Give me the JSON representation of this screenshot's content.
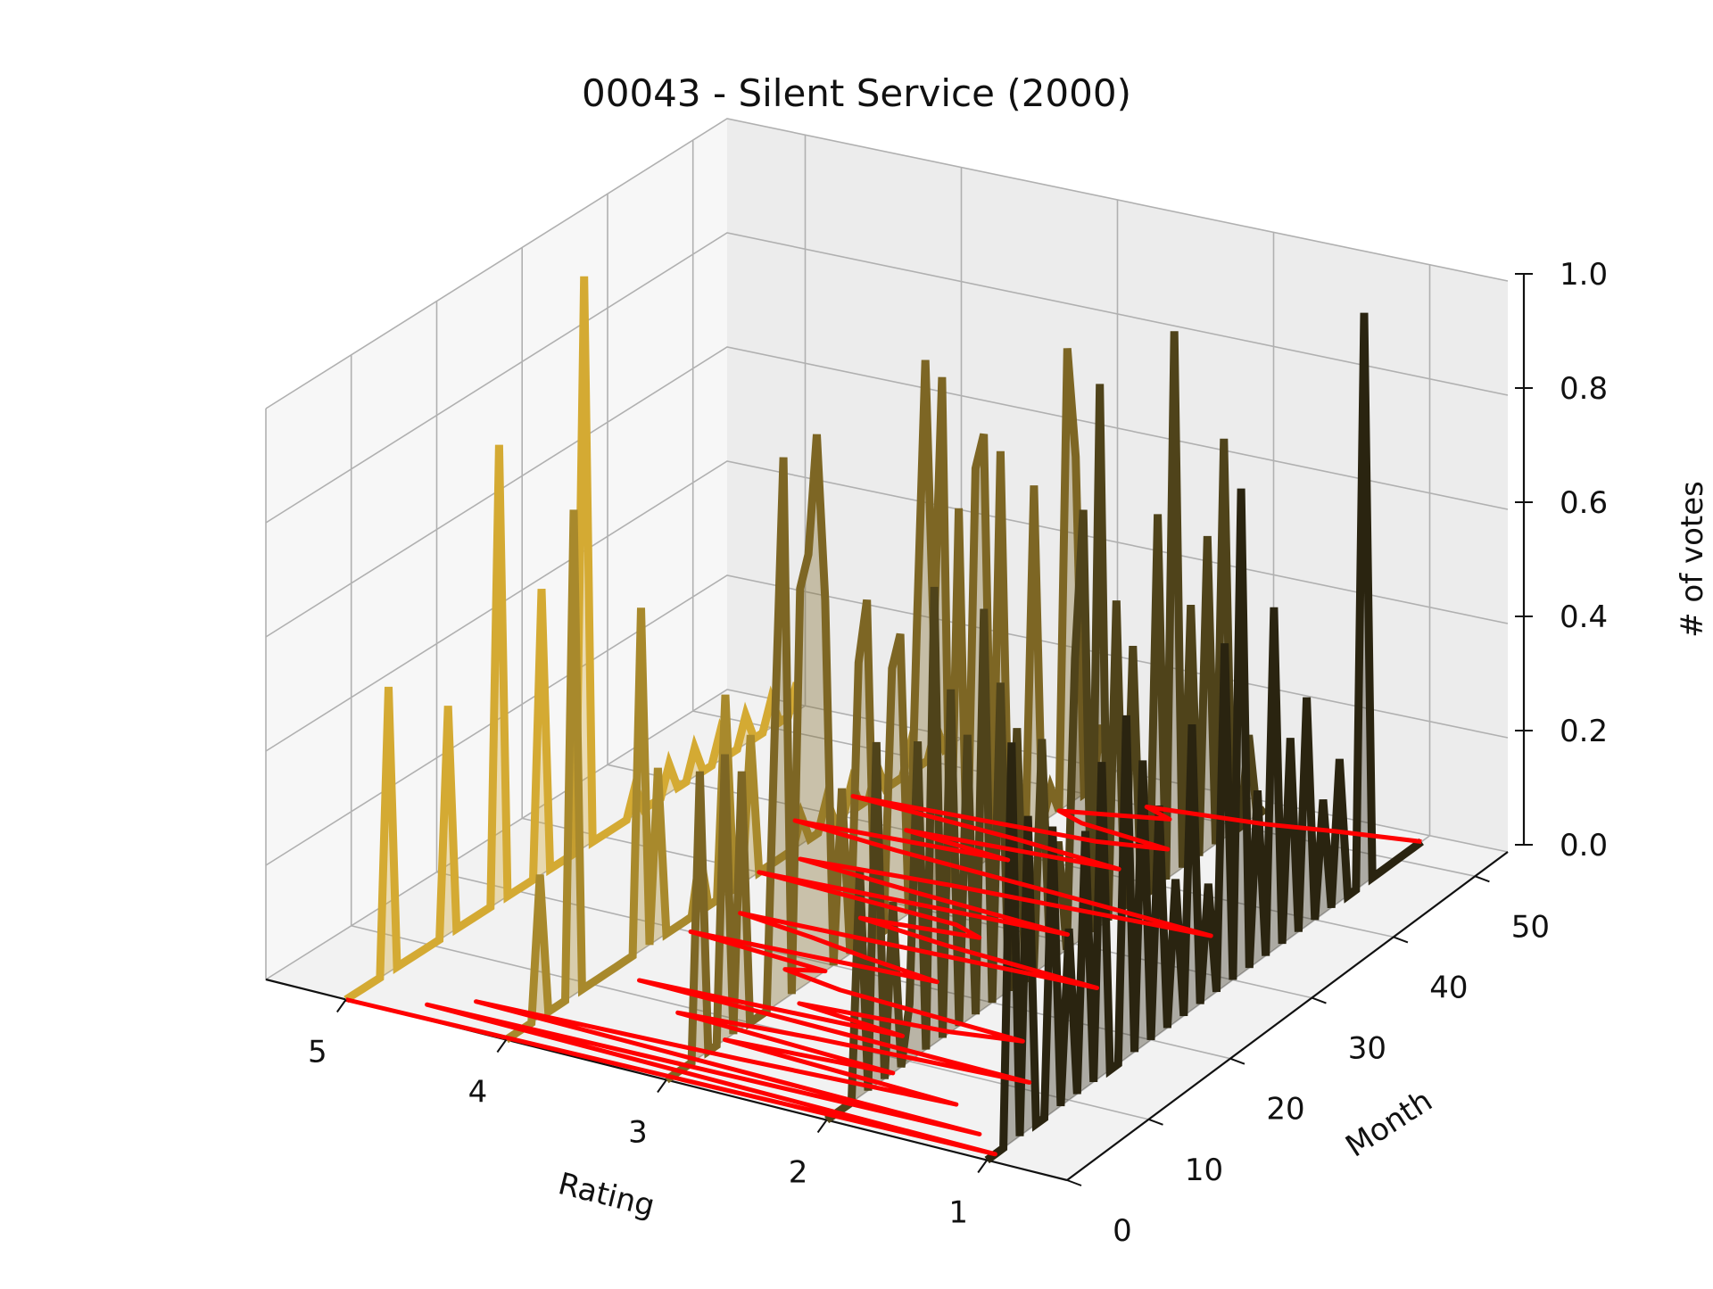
{
  "chart_data": {
    "type": "line",
    "projection": "3d",
    "title": "00043 - Silent Service (2000)",
    "xlabel": "Rating",
    "ylabel": "Month",
    "zlabel": "# of votes",
    "x_ticks": [
      "5",
      "4",
      "3",
      "2",
      "1"
    ],
    "y_ticks": [
      "0",
      "10",
      "20",
      "30",
      "40",
      "50"
    ],
    "z_ticks": [
      "0.0",
      "0.2",
      "0.4",
      "0.6",
      "0.8",
      "1.0"
    ],
    "xlim": [
      0.5,
      5.5
    ],
    "ylim": [
      0,
      54
    ],
    "zlim": [
      0,
      1
    ],
    "grid": true,
    "colors": {
      "rating_5": "#d4aa33",
      "rating_4": "#a8892c",
      "rating_3": "#7d6624",
      "rating_2": "#4f431a",
      "rating_1": "#2a2410",
      "mean_line": "#ff0000",
      "pane": "#ebebeb",
      "grid": "#b0b0b0"
    },
    "series": [
      {
        "rating": 5,
        "values": [
          0,
          0,
          0,
          0,
          0,
          0.5,
          0,
          0,
          0,
          0,
          0,
          0,
          0.4,
          0,
          0,
          0,
          0,
          0,
          0.8,
          0,
          0,
          0,
          0,
          0.5,
          0,
          0,
          0,
          0,
          1.0,
          0,
          0,
          0,
          0,
          0,
          0.05,
          0,
          0,
          0,
          0.05,
          0,
          0,
          0.05,
          0,
          0,
          0.05,
          0,
          0,
          0.05,
          0,
          0,
          0.05,
          0,
          0,
          0.05
        ]
      },
      {
        "rating": 4,
        "values": [
          0,
          0,
          0,
          0,
          0.25,
          0,
          0,
          0,
          0.85,
          0,
          0,
          0,
          0,
          0,
          0,
          0,
          0.6,
          0,
          0.3,
          0,
          0,
          0,
          0,
          0.1,
          0,
          0,
          0.35,
          0,
          0,
          0.25,
          0,
          0,
          0,
          0,
          0,
          0.05,
          0,
          0,
          0.05,
          0,
          0,
          0.05,
          0,
          0,
          0.05,
          0,
          0,
          0,
          0.05,
          0,
          0,
          0.05,
          0,
          0
        ]
      },
      {
        "rating": 3,
        "values": [
          0,
          0,
          0,
          0,
          0.5,
          0,
          0,
          0.5,
          0,
          0.45,
          0,
          0,
          0,
          0.5,
          0.95,
          0,
          0.7,
          0.75,
          0.95,
          0.65,
          0,
          0.3,
          0,
          0.5,
          0.6,
          0,
          0,
          0.45,
          0.5,
          0,
          0.5,
          0.95,
          0.45,
          0.9,
          0,
          0.65,
          0,
          0.7,
          0.75,
          0,
          0.7,
          0,
          0,
          0,
          0.6,
          0,
          0.05,
          0,
          0.8,
          0.6,
          0,
          0,
          0.1,
          0
        ]
      },
      {
        "rating": 2,
        "values": [
          0,
          0,
          0,
          0,
          0.4,
          0,
          0.6,
          0,
          0.3,
          0,
          0.1,
          0.55,
          0,
          0.8,
          0,
          0.6,
          0,
          0.5,
          0,
          0.7,
          0,
          0.55,
          0,
          0.45,
          0,
          0,
          0.4,
          0,
          0.2,
          0,
          0.5,
          0.75,
          0,
          0.95,
          0,
          0.55,
          0,
          0.45,
          0,
          0,
          0.65,
          0,
          0.95,
          0,
          0.45,
          0,
          0.55,
          0,
          0.7,
          0,
          0,
          0.15,
          0,
          0
        ]
      },
      {
        "rating": 1,
        "values": [
          0,
          0,
          0,
          0.7,
          0,
          0.55,
          0,
          0,
          0.5,
          0,
          0.3,
          0,
          0.45,
          0,
          0.55,
          0,
          0,
          0.6,
          0,
          0.5,
          0,
          0.4,
          0,
          0.25,
          0,
          0.5,
          0,
          0.2,
          0,
          0.6,
          0,
          0.85,
          0,
          0.3,
          0,
          0.6,
          0,
          0.35,
          0,
          0.4,
          0,
          0.2,
          0,
          0.25,
          0,
          0,
          1.0,
          0,
          0,
          0,
          0,
          0,
          0,
          0
        ]
      }
    ],
    "mean_rating": [
      5.0,
      1.0,
      4.6,
      1.2,
      4.4,
      2.8,
      1.5,
      3.0,
      2.0,
      3.4,
      2.6,
      1.3,
      3.8,
      2.2,
      2.9,
      2.0,
      1.6,
      2.8,
      3.2,
      3.0,
      3.9,
      2.4,
      2.9,
      3.3,
      3.8,
      1.6,
      2.6,
      3.2,
      2.5,
      2.7,
      4.0,
      2.1,
      3.1,
      3.9,
      3.0,
      1.4,
      2.4,
      3.5,
      4.2,
      2.9,
      3.6,
      2.3,
      3.0,
      4.1,
      2.6,
      2.2,
      2.8,
      3.0,
      2.7,
      2.4,
      2.6,
      1.9,
      1.5,
      1.0
    ]
  }
}
